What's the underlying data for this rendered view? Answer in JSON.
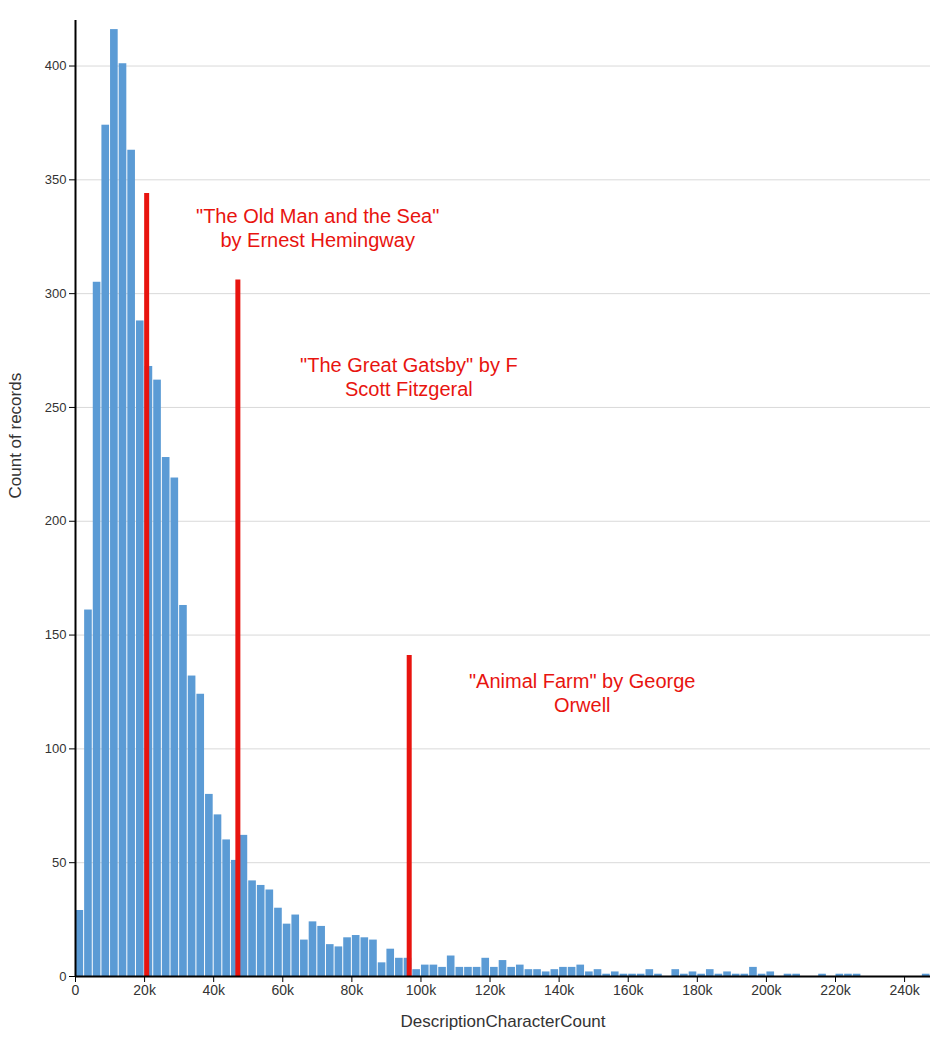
{
  "chart_data": {
    "type": "histogram",
    "x_label": "DescriptionCharacterCount",
    "y_label": "Count of records",
    "color": "#5b9bd5",
    "grid": true,
    "xlim": [
      0,
      247500
    ],
    "ylim": [
      0,
      420
    ],
    "xticks": [
      0,
      {
        "value": 20000,
        "label": "20k"
      },
      {
        "value": 40000,
        "label": "40k"
      },
      {
        "value": 60000,
        "label": "60k"
      },
      {
        "value": 80000,
        "label": "80k"
      },
      {
        "value": 100000,
        "label": "100k"
      },
      {
        "value": 120000,
        "label": "120k"
      },
      {
        "value": 140000,
        "label": "140k"
      },
      {
        "value": 160000,
        "label": "160k"
      },
      {
        "value": 180000,
        "label": "180k"
      },
      {
        "value": 200000,
        "label": "200k"
      },
      {
        "value": 220000,
        "label": "220k"
      },
      {
        "value": 240000,
        "label": "240k"
      }
    ],
    "yticks": [
      0,
      50,
      100,
      150,
      200,
      250,
      300,
      350,
      400
    ],
    "bins": [
      0,
      2500,
      5000,
      7500,
      10000,
      12500,
      15000,
      17500,
      20000,
      22500,
      25000,
      27500,
      30000,
      32500,
      35000,
      37500,
      40000,
      42500,
      45000,
      47500,
      50000,
      52500,
      55000,
      57500,
      60000,
      62500,
      65000,
      67500,
      70000,
      72500,
      75000,
      77500,
      80000,
      82500,
      85000,
      87500,
      90000,
      92500,
      95000,
      97500,
      100000,
      102500,
      105000,
      107500,
      110000,
      112500,
      115000,
      117500,
      120000,
      122500,
      125000,
      127500,
      130000,
      132500,
      135000,
      137500,
      140000,
      142500,
      145000,
      147500,
      150000,
      152500,
      155000,
      157500,
      160000,
      162500,
      165000,
      167500,
      170000,
      172500,
      175000,
      177500,
      180000,
      182500,
      185000,
      187500,
      190000,
      192500,
      195000,
      197500,
      200000,
      202500,
      205000,
      207500,
      210000,
      212500,
      215000,
      217500,
      220000,
      222500,
      225000,
      227500,
      230000,
      232500,
      235000,
      237500,
      240000,
      242500,
      245000,
      247500
    ],
    "counts": [
      29,
      161,
      305,
      374,
      416,
      401,
      363,
      288,
      268,
      262,
      228,
      219,
      163,
      132,
      124,
      80,
      71,
      60,
      51,
      62,
      42,
      40,
      38,
      30,
      23,
      27,
      16,
      24,
      22,
      14,
      13,
      17,
      18,
      17,
      16,
      6,
      12,
      8,
      8,
      3,
      5,
      5,
      4,
      9,
      4,
      4,
      4,
      8,
      4,
      7,
      4,
      5,
      3,
      3,
      2,
      3,
      4,
      4,
      5,
      2,
      3,
      1,
      2,
      1,
      1,
      1,
      3,
      1,
      0,
      3,
      1,
      2,
      1,
      3,
      1,
      2,
      1,
      1,
      4,
      1,
      2,
      0,
      1,
      1,
      0,
      0,
      1,
      0,
      1,
      1,
      1,
      0,
      0,
      0,
      0,
      0,
      0,
      0,
      1
    ],
    "annotations": [
      {
        "text": "\"The Old Man and the Sea\"\nby Ernest Hemingway",
        "x": 20600,
        "y": 344,
        "color": "#e8140f"
      },
      {
        "text": "\"The Great Gatsby\" by F\nScott Fitzgeral",
        "x": 47000,
        "y": 306,
        "color": "#e8140f"
      },
      {
        "text": "\"Animal Farm\" by George\nOrwell",
        "x": 96600,
        "y": 141,
        "color": "#e8140f"
      }
    ]
  }
}
